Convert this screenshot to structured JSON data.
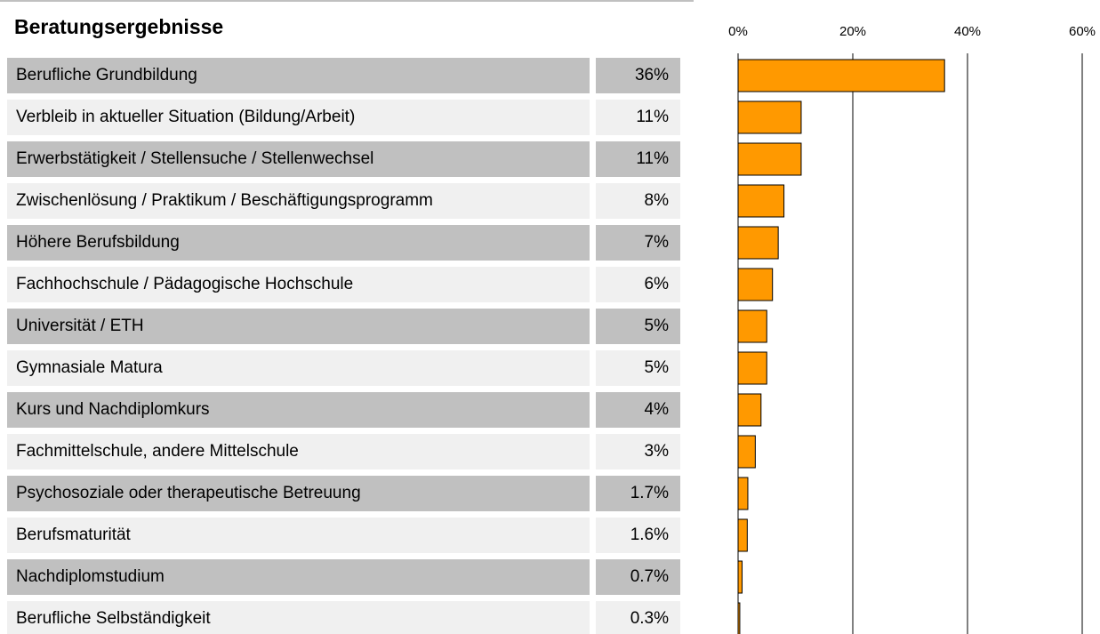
{
  "chart_data": {
    "type": "bar",
    "orientation": "horizontal",
    "title": "Beratungsergebnisse",
    "categories": [
      "Berufliche Grundbildung",
      "Verbleib in aktueller Situation (Bildung/Arbeit)",
      "Erwerbstätigkeit / Stellensuche / Stellenwechsel",
      "Zwischenlösung / Praktikum / Beschäftigungsprogramm",
      "Höhere Berufsbildung",
      "Fachhochschule / Pädagogische Hochschule",
      "Universität / ETH",
      "Gymnasiale Matura",
      "Kurs und Nachdiplomkurs",
      "Fachmittelschule, andere Mittelschule",
      "Psychosoziale oder therapeutische Betreuung",
      "Berufsmaturität",
      "Nachdiplomstudium",
      "Berufliche Selbständigkeit"
    ],
    "values": [
      36,
      11,
      11,
      8,
      7,
      6,
      5,
      5,
      4,
      3,
      1.7,
      1.6,
      0.7,
      0.3
    ],
    "value_labels": [
      "36%",
      "11%",
      "11%",
      "8%",
      "7%",
      "6%",
      "5%",
      "5%",
      "4%",
      "3%",
      "1.7%",
      "1.6%",
      "0.7%",
      "0.3%"
    ],
    "color": "#ff9900",
    "xlim": [
      0,
      60
    ],
    "xticks": [
      {
        "value": 0,
        "label": "0%"
      },
      {
        "value": 20,
        "label": "20%"
      },
      {
        "value": 40,
        "label": "40%"
      },
      {
        "value": 60,
        "label": "60%"
      }
    ],
    "grid": true
  }
}
